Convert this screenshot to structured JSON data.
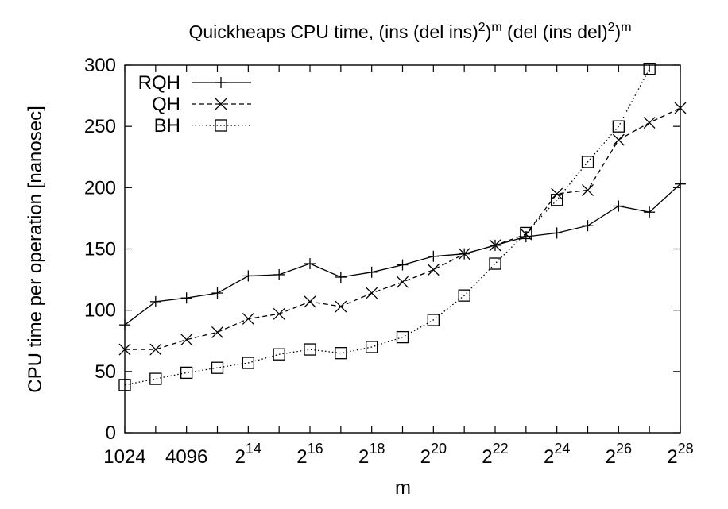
{
  "chart_data": {
    "type": "line",
    "title": {
      "main": "Quickheaps CPU time, (ins (del ins)",
      "sup1": "2",
      "part2": ")",
      "sup2": "m",
      "part3": " (del (ins del)",
      "sup3": "2",
      "part4": ")",
      "sup4": "m"
    },
    "xlabel": "m",
    "ylabel": "CPU time per operation [nanosec]",
    "x_scale": "log2",
    "xlim": [
      10,
      28
    ],
    "ylim": [
      0,
      300
    ],
    "y_ticks": [
      0,
      50,
      100,
      150,
      200,
      250,
      300
    ],
    "x_ticks": [
      {
        "exp": 10,
        "base": "1024",
        "sup": ""
      },
      {
        "exp": 12,
        "base": "4096",
        "sup": ""
      },
      {
        "exp": 14,
        "base": "2",
        "sup": "14"
      },
      {
        "exp": 16,
        "base": "2",
        "sup": "16"
      },
      {
        "exp": 18,
        "base": "2",
        "sup": "18"
      },
      {
        "exp": 20,
        "base": "2",
        "sup": "20"
      },
      {
        "exp": 22,
        "base": "2",
        "sup": "22"
      },
      {
        "exp": 24,
        "base": "2",
        "sup": "24"
      },
      {
        "exp": 26,
        "base": "2",
        "sup": "26"
      },
      {
        "exp": 28,
        "base": "2",
        "sup": "28"
      }
    ],
    "x": [
      "2^10",
      "2^11",
      "2^12",
      "2^13",
      "2^14",
      "2^15",
      "2^16",
      "2^17",
      "2^18",
      "2^19",
      "2^20",
      "2^21",
      "2^22",
      "2^23",
      "2^24",
      "2^25",
      "2^26",
      "2^27",
      "2^28"
    ],
    "series": [
      {
        "name": "RQH",
        "marker": "plus",
        "dash": "solid",
        "values": [
          88,
          107,
          110,
          114,
          128,
          129,
          138,
          127,
          131,
          137,
          144,
          146,
          153,
          160,
          163,
          169,
          185,
          180,
          203
        ]
      },
      {
        "name": "QH",
        "marker": "cross",
        "dash": "dashed",
        "values": [
          68,
          68,
          76,
          82,
          93,
          97,
          107,
          103,
          114,
          123,
          133,
          146,
          153,
          162,
          195,
          198,
          239,
          253,
          265
        ]
      },
      {
        "name": "BH",
        "marker": "square",
        "dash": "dotted",
        "values": [
          39,
          44,
          49,
          53,
          57,
          64,
          68,
          65,
          70,
          78,
          92,
          112,
          138,
          163,
          190,
          221,
          250,
          297,
          null
        ]
      }
    ],
    "legend_position": "top-left",
    "grid": false
  }
}
